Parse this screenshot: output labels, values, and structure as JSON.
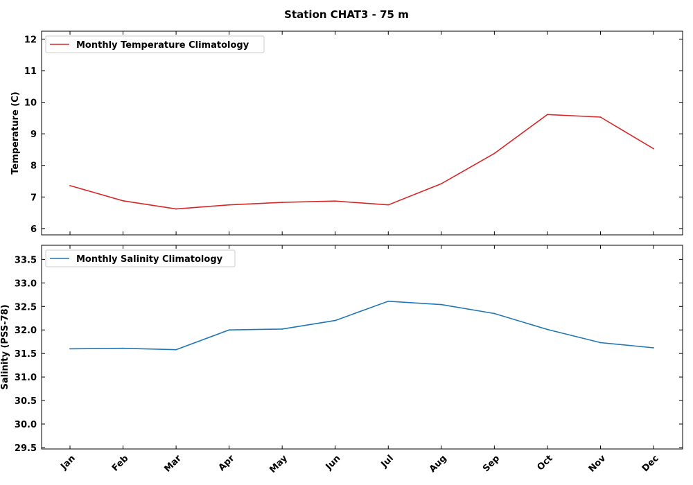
{
  "title": "Station CHAT3 - 75 m",
  "chart_data": [
    {
      "type": "line",
      "ylabel": "Temperature (C)",
      "xlabel": "",
      "categories": [
        "Jan",
        "Feb",
        "Mar",
        "Apr",
        "May",
        "Jun",
        "Jul",
        "Aug",
        "Sep",
        "Oct",
        "Nov",
        "Dec"
      ],
      "ylim": [
        5.8,
        12.25
      ],
      "yticks": [
        "6",
        "7",
        "8",
        "9",
        "10",
        "11",
        "12"
      ],
      "legend_position": "upper-left",
      "grid": false,
      "series": [
        {
          "name": "Monthly Temperature Climatology",
          "color": "#d62728",
          "values": [
            7.36,
            6.88,
            6.62,
            6.75,
            6.83,
            6.87,
            6.75,
            7.42,
            8.38,
            9.61,
            9.53,
            8.53
          ]
        }
      ]
    },
    {
      "type": "line",
      "ylabel": "Salinity (PSS-78)",
      "xlabel": "",
      "categories": [
        "Jan",
        "Feb",
        "Mar",
        "Apr",
        "May",
        "Jun",
        "Jul",
        "Aug",
        "Sep",
        "Oct",
        "Nov",
        "Dec"
      ],
      "ylim": [
        29.47,
        33.8
      ],
      "yticks": [
        "29.5",
        "30.0",
        "30.5",
        "31.0",
        "31.5",
        "32.0",
        "32.5",
        "33.0",
        "33.5"
      ],
      "legend_position": "upper-left",
      "grid": false,
      "series": [
        {
          "name": "Monthly Salinity Climatology",
          "color": "#1f77b4",
          "values": [
            31.6,
            31.61,
            31.58,
            32.0,
            32.02,
            32.2,
            32.61,
            32.54,
            32.35,
            32.01,
            31.73,
            31.62
          ]
        }
      ]
    }
  ]
}
